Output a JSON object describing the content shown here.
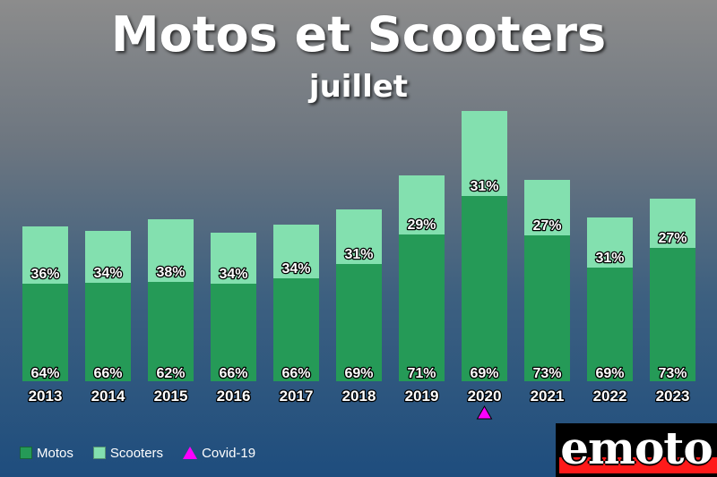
{
  "title": "Motos et Scooters",
  "subtitle": "juillet",
  "logo_text": "emoto",
  "colors": {
    "motos": "#259a57",
    "scooters": "#83e0af",
    "covid": "#ff00ff",
    "logo_red": "#ff1a1a"
  },
  "legend": {
    "motos": "Motos",
    "scooters": "Scooters",
    "covid": "Covid-19"
  },
  "chart_data": {
    "type": "bar",
    "stacked": true,
    "categories": [
      "2013",
      "2014",
      "2015",
      "2016",
      "2017",
      "2018",
      "2019",
      "2020",
      "2021",
      "2022",
      "2023"
    ],
    "series": [
      {
        "name": "Motos",
        "percent_labels": [
          "64%",
          "66%",
          "62%",
          "66%",
          "66%",
          "69%",
          "71%",
          "69%",
          "73%",
          "69%",
          "73%"
        ],
        "values": [
          109,
          110,
          111,
          109,
          115,
          131,
          164,
          207,
          163,
          127,
          149
        ]
      },
      {
        "name": "Scooters",
        "percent_labels": [
          "36%",
          "34%",
          "38%",
          "34%",
          "34%",
          "31%",
          "29%",
          "31%",
          "27%",
          "31%",
          "27%"
        ],
        "values": [
          64,
          58,
          70,
          57,
          60,
          61,
          66,
          95,
          62,
          56,
          55
        ]
      }
    ],
    "markers": [
      {
        "category": "2020",
        "label": "Covid-19"
      }
    ],
    "ylim": [
      0,
      302
    ],
    "grid": false,
    "legend_position": "bottom-left"
  }
}
